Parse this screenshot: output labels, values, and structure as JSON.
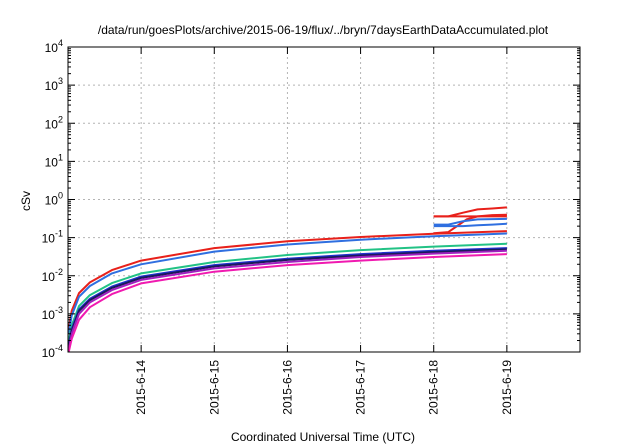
{
  "chart_data": {
    "type": "line",
    "title": "/data/run/goesPlots/archive/2015-06-19/flux/../bryn/7daysEarthDataAccumulated.plot",
    "xlabel": "Coordinated Universal Time (UTC)",
    "ylabel": "cSv",
    "y_scale": "log",
    "ylim_exponents": [
      -4,
      4
    ],
    "y_tick_labels": [
      {
        "exp": -4,
        "base": "10",
        "sup": "-4"
      },
      {
        "exp": -3,
        "base": "10",
        "sup": "-3"
      },
      {
        "exp": -2,
        "base": "10",
        "sup": "-2"
      },
      {
        "exp": -1,
        "base": "10",
        "sup": "-1"
      },
      {
        "exp": 0,
        "base": "10",
        "sup": "0"
      },
      {
        "exp": 1,
        "base": "10",
        "sup": "1"
      },
      {
        "exp": 2,
        "base": "10",
        "sup": "2"
      },
      {
        "exp": 3,
        "base": "10",
        "sup": "3"
      },
      {
        "exp": 4,
        "base": "10",
        "sup": "4"
      }
    ],
    "xlim_days": [
      0,
      7
    ],
    "x_ticks": [
      {
        "day": 1,
        "label": "2015-6-14"
      },
      {
        "day": 2,
        "label": "2015-6-15"
      },
      {
        "day": 3,
        "label": "2015-6-16"
      },
      {
        "day": 4,
        "label": "2015-6-17"
      },
      {
        "day": 5,
        "label": "2015-6-18"
      },
      {
        "day": 6,
        "label": "2015-6-19"
      }
    ],
    "grid": true,
    "series": [
      {
        "color": "#e8201a",
        "x": [
          0.01,
          0.05,
          0.15,
          0.3,
          0.6,
          1.0,
          2.0,
          3.0,
          4.0,
          5.0,
          6.0
        ],
        "y": [
          0.0004,
          0.0012,
          0.0035,
          0.0067,
          0.0141,
          0.025,
          0.053,
          0.08,
          0.104,
          0.127,
          0.148
        ]
      },
      {
        "color": "#2f6fe0",
        "x": [
          0.01,
          0.05,
          0.15,
          0.3,
          0.6,
          1.0,
          2.0,
          3.0,
          4.0,
          5.0,
          6.0
        ],
        "y": [
          0.0003,
          0.0009,
          0.0028,
          0.0054,
          0.0115,
          0.02,
          0.043,
          0.066,
          0.088,
          0.109,
          0.128
        ]
      },
      {
        "color": "#22c285",
        "x": [
          0.01,
          0.05,
          0.15,
          0.3,
          0.6,
          1.0,
          2.0,
          3.0,
          4.0,
          5.0,
          6.0
        ],
        "y": [
          0.0002,
          0.0005,
          0.0016,
          0.0031,
          0.0064,
          0.0115,
          0.023,
          0.035,
          0.047,
          0.058,
          0.069
        ]
      },
      {
        "color": "#2030d0",
        "x": [
          0.01,
          0.05,
          0.15,
          0.3,
          0.6,
          1.0,
          2.0,
          3.0,
          4.0,
          5.0,
          6.0
        ],
        "y": [
          0.00015,
          0.0004,
          0.0013,
          0.0025,
          0.0052,
          0.0095,
          0.019,
          0.028,
          0.037,
          0.045,
          0.053
        ]
      },
      {
        "color": "#1a1a5a",
        "x": [
          0.01,
          0.05,
          0.15,
          0.3,
          0.6,
          1.0,
          2.0,
          3.0,
          4.0,
          5.0,
          6.0
        ],
        "y": [
          0.00013,
          0.00036,
          0.0012,
          0.0023,
          0.0048,
          0.0088,
          0.0176,
          0.026,
          0.034,
          0.042,
          0.049
        ]
      },
      {
        "color": "#a01fbf",
        "x": [
          0.01,
          0.05,
          0.15,
          0.3,
          0.6,
          1.0,
          2.0,
          3.0,
          4.0,
          5.0,
          6.0
        ],
        "y": [
          0.00011,
          0.0003,
          0.001,
          0.002,
          0.0042,
          0.0078,
          0.0156,
          0.023,
          0.031,
          0.038,
          0.045
        ]
      },
      {
        "color": "#f01ab0",
        "x": [
          0.01,
          0.05,
          0.15,
          0.3,
          0.6,
          1.0,
          2.0,
          3.0,
          4.0,
          5.0,
          6.0
        ],
        "y": [
          0.0001,
          0.00022,
          0.0007,
          0.0015,
          0.0033,
          0.0063,
          0.0128,
          0.019,
          0.025,
          0.031,
          0.037
        ]
      },
      {
        "color": "#e8201a",
        "x": [
          5.0,
          5.25,
          5.5,
          5.75,
          6.0
        ],
        "y": [
          0.36,
          0.36,
          0.36,
          0.36,
          0.36
        ]
      },
      {
        "color": "#e8201a",
        "x": [
          5.0,
          5.2,
          5.4,
          5.6,
          5.8,
          6.0
        ],
        "y": [
          0.36,
          0.36,
          0.45,
          0.55,
          0.58,
          0.62
        ]
      },
      {
        "color": "#e8201a",
        "x": [
          5.0,
          5.2,
          5.3,
          5.45,
          5.6,
          5.8,
          6.0
        ],
        "y": [
          0.13,
          0.14,
          0.19,
          0.3,
          0.36,
          0.39,
          0.4
        ]
      },
      {
        "color": "#2f6fe0",
        "x": [
          5.0,
          5.2,
          5.4,
          5.6,
          6.0
        ],
        "y": [
          0.22,
          0.22,
          0.27,
          0.3,
          0.31
        ]
      },
      {
        "color": "#2f6fe0",
        "x": [
          5.0,
          5.2,
          5.4,
          5.6,
          5.8,
          6.0
        ],
        "y": [
          0.2,
          0.2,
          0.2,
          0.21,
          0.22,
          0.23
        ]
      }
    ]
  }
}
